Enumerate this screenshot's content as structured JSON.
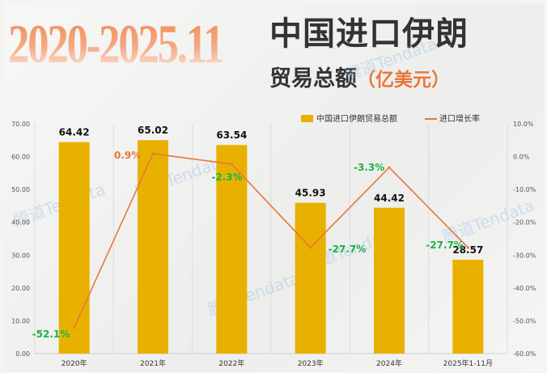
{
  "header": {
    "period": "2020-2025.11",
    "title_line1": "中国进口伊朗",
    "title_line2": "贸易总额",
    "unit": "（亿美元）"
  },
  "watermark": "腾道Tendata",
  "colors": {
    "bar": "#e8b100",
    "line": "#e8773a",
    "positive_label": "#e8773a",
    "negative_label": "#1bb34a"
  },
  "chart_data": {
    "type": "bar+line",
    "categories": [
      "2020年",
      "2021年",
      "2022年",
      "2023年",
      "2024年",
      "2025年1-11月"
    ],
    "series": [
      {
        "name": "中国进口伊朗贸易总额",
        "type": "bar",
        "axis": "left",
        "values": [
          64.42,
          65.02,
          63.54,
          45.93,
          44.42,
          28.57
        ],
        "labels": [
          "64.42",
          "65.02",
          "63.54",
          "45.93",
          "44.42",
          "28.57"
        ]
      },
      {
        "name": "进口增长率",
        "type": "line",
        "axis": "right",
        "values": [
          -52.1,
          0.9,
          -2.3,
          -27.7,
          -3.3,
          -27.7
        ],
        "labels": [
          "-52.1%",
          "0.9%",
          "-2.3%",
          "-27.7%",
          "-3.3%",
          "-27.7%"
        ]
      }
    ],
    "left_axis": {
      "range": [
        0,
        70
      ],
      "ticks": [
        "0.00",
        "10.00",
        "20.00",
        "30.00",
        "40.00",
        "50.00",
        "60.00",
        "70.00"
      ]
    },
    "right_axis": {
      "range": [
        -60,
        10
      ],
      "ticks": [
        "-60.0%",
        "-50.0%",
        "-40.0%",
        "-30.0%",
        "-20.0%",
        "-10.0%",
        "0.0%",
        "10.0%"
      ]
    },
    "grid": "vertical",
    "legend": "top-right"
  }
}
